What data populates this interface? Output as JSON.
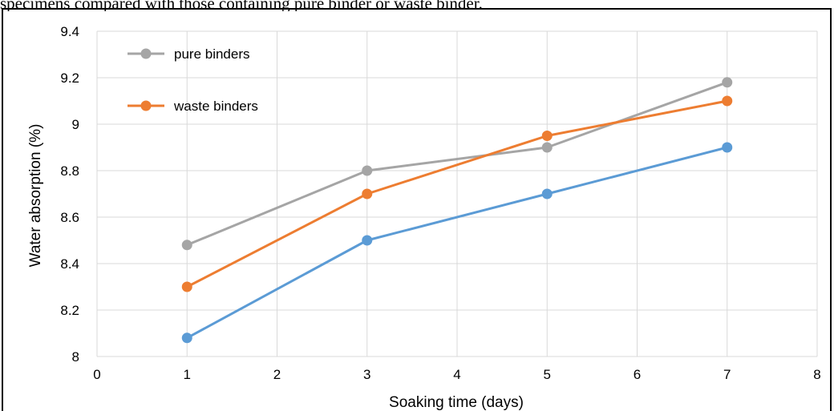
{
  "caption": "specimens compared with those containing pure binder or waste binder.",
  "chart_data": {
    "type": "line",
    "title": "",
    "xlabel": "Soaking time (days)",
    "ylabel": "Water absorption (%)",
    "xlim": [
      0,
      8
    ],
    "ylim": [
      8,
      9.4
    ],
    "x_ticks": [
      "0",
      "1",
      "2",
      "3",
      "4",
      "5",
      "6",
      "7",
      "8"
    ],
    "y_ticks": [
      "8",
      "8.2",
      "8.4",
      "8.6",
      "8.8",
      "9",
      "9.2",
      "9.4"
    ],
    "x_tick_values": [
      0,
      1,
      2,
      3,
      4,
      5,
      6,
      7,
      8
    ],
    "y_tick_values": [
      8,
      8.2,
      8.4,
      8.6,
      8.8,
      9,
      9.2,
      9.4
    ],
    "grid": true,
    "legend_position": "top-left",
    "series": [
      {
        "name": "pure binders",
        "color": "#A5A5A5",
        "x": [
          1,
          3,
          5,
          7
        ],
        "y": [
          8.48,
          8.8,
          8.9,
          9.18
        ]
      },
      {
        "name": "waste binders",
        "color": "#ED7D31",
        "x": [
          1,
          3,
          5,
          7
        ],
        "y": [
          8.3,
          8.7,
          8.95,
          9.1
        ]
      },
      {
        "color": "#5B9BD5",
        "x": [
          1,
          3,
          5,
          7
        ],
        "y": [
          8.08,
          8.5,
          8.7,
          8.9
        ]
      }
    ]
  }
}
